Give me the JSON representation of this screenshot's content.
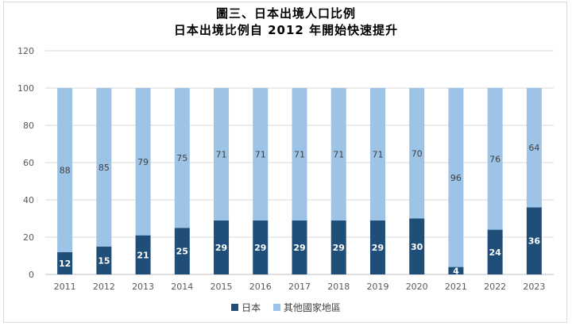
{
  "chart_data": {
    "type": "bar",
    "stacked": true,
    "title": "圖三、日本出境人口比例",
    "subtitle": "日本出境比例自 2012 年開始快速提升",
    "categories": [
      "2011",
      "2012",
      "2013",
      "2014",
      "2015",
      "2016",
      "2017",
      "2018",
      "2019",
      "2020",
      "2021",
      "2022",
      "2023"
    ],
    "series": [
      {
        "name": "日本",
        "color": "#1f4e79",
        "values": [
          12,
          15,
          21,
          25,
          29,
          29,
          29,
          29,
          29,
          30,
          4,
          24,
          36
        ]
      },
      {
        "name": "其他國家地區",
        "color": "#9dc3e6",
        "values": [
          88,
          85,
          79,
          75,
          71,
          71,
          71,
          71,
          71,
          70,
          96,
          76,
          64
        ]
      }
    ],
    "ylim": [
      0,
      120
    ],
    "yticks": [
      0,
      20,
      40,
      60,
      80,
      100,
      120
    ],
    "grid": true,
    "legend": "bottom"
  }
}
